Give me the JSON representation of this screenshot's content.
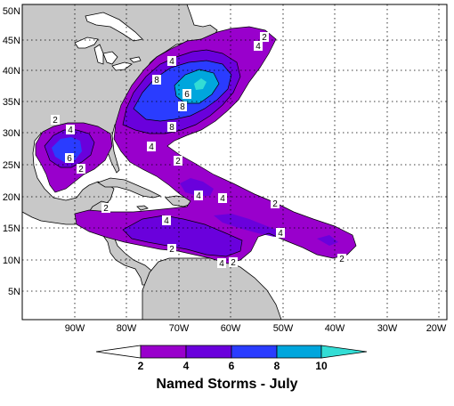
{
  "title": "Named Storms - July",
  "colors": {
    "land": "#c8c8c8",
    "ocean": "#ffffff",
    "level_2_4": "#9900cc",
    "level_4_6": "#6a00dc",
    "level_6_8": "#2a3cff",
    "level_8_10": "#00a6dd",
    "level_10_plus": "#33ddd5"
  },
  "lat_labels": [
    "5N",
    "10N",
    "15N",
    "20N",
    "25N",
    "30N",
    "35N",
    "40N",
    "45N",
    "50N"
  ],
  "lon_labels": [
    "90W",
    "80W",
    "70W",
    "60W",
    "50W",
    "40W",
    "30W",
    "20W"
  ],
  "colorbar": {
    "ticks": [
      "2",
      "4",
      "6",
      "8",
      "10"
    ],
    "colors": [
      "#ffffff",
      "#9900cc",
      "#6a00dc",
      "#2a3cff",
      "#00a6dd",
      "#33ddd5"
    ]
  },
  "contour_labels": [
    {
      "id": "lbl-a",
      "text": "2"
    },
    {
      "id": "lbl-b",
      "text": "4"
    },
    {
      "id": "lbl-c",
      "text": "4"
    },
    {
      "id": "lbl-d",
      "text": "6"
    },
    {
      "id": "lbl-e",
      "text": "8"
    },
    {
      "id": "lbl-f",
      "text": "8"
    },
    {
      "id": "lbl-g",
      "text": "8"
    },
    {
      "id": "lbl-h",
      "text": "4"
    },
    {
      "id": "lbl-i",
      "text": "2"
    },
    {
      "id": "lbl-j",
      "text": "2"
    },
    {
      "id": "lbl-k",
      "text": "4"
    },
    {
      "id": "lbl-l",
      "text": "6"
    },
    {
      "id": "lbl-m",
      "text": "2"
    },
    {
      "id": "lbl-n",
      "text": "4"
    },
    {
      "id": "lbl-o",
      "text": "4"
    },
    {
      "id": "lbl-p",
      "text": "2"
    },
    {
      "id": "lbl-q",
      "text": "2"
    },
    {
      "id": "lbl-r",
      "text": "4"
    },
    {
      "id": "lbl-s",
      "text": "4"
    },
    {
      "id": "lbl-t",
      "text": "2"
    },
    {
      "id": "lbl-u",
      "text": "2"
    },
    {
      "id": "lbl-v",
      "text": "2"
    },
    {
      "id": "lbl-w",
      "text": "4"
    }
  ]
}
